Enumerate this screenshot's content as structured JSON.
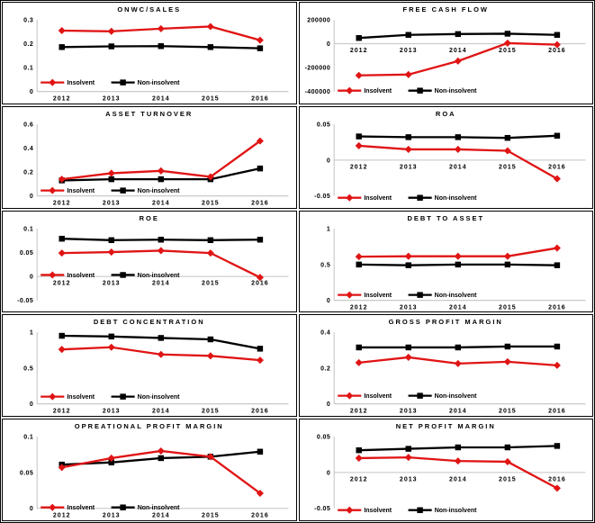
{
  "page": {
    "background": "#ffffff",
    "border_color": "#000000"
  },
  "axis": {
    "line_color": "#c3c3c3",
    "label_color": "#000000"
  },
  "years": [
    "2012",
    "2013",
    "2014",
    "2015",
    "2016"
  ],
  "legend": {
    "insolvent_label": "Insolvent",
    "non_insolvent_label": "Non-insolvent",
    "insolvent_color": "#e01414",
    "non_insolvent_color": "#000000"
  },
  "chart_data": [
    {
      "type": "line",
      "title": "ONWC/SALES",
      "ylim": [
        0,
        0.3
      ],
      "yticks": [
        0,
        0.1,
        0.2,
        0.3
      ],
      "legend_y": 74,
      "series": [
        {
          "name": "Insolvent",
          "color": "#e01414",
          "marker": "diamond",
          "values": [
            0.255,
            0.252,
            0.263,
            0.272,
            0.215
          ]
        },
        {
          "name": "Non-insolvent",
          "color": "#000000",
          "marker": "square",
          "values": [
            0.186,
            0.189,
            0.19,
            0.186,
            0.181
          ]
        }
      ]
    },
    {
      "type": "line",
      "title": "FREE CASH FLOW",
      "ylim": [
        -400000,
        200000
      ],
      "yticks": [
        -400000,
        -200000,
        0,
        200000
      ],
      "legend_y": 83,
      "series": [
        {
          "name": "Insolvent",
          "color": "#e01414",
          "marker": "diamond",
          "values": [
            -265000,
            -258000,
            -145000,
            5000,
            -8000
          ]
        },
        {
          "name": "Non-insolvent",
          "color": "#000000",
          "marker": "square",
          "values": [
            48000,
            74000,
            81000,
            84000,
            74000
          ]
        }
      ]
    },
    {
      "type": "line",
      "title": "ASSET TURNOVER",
      "ylim": [
        0,
        0.6
      ],
      "yticks": [
        0,
        0.2,
        0.4,
        0.6
      ],
      "legend_y": 78,
      "series": [
        {
          "name": "Insolvent",
          "color": "#e01414",
          "marker": "diamond",
          "values": [
            0.14,
            0.19,
            0.21,
            0.16,
            0.46
          ]
        },
        {
          "name": "Non-insolvent",
          "color": "#000000",
          "marker": "square",
          "values": [
            0.13,
            0.14,
            0.14,
            0.14,
            0.23
          ]
        }
      ]
    },
    {
      "type": "line",
      "title": "ROA",
      "ylim": [
        -0.05,
        0.05
      ],
      "yticks": [
        -0.05,
        0,
        0.05
      ],
      "legend_y": 86,
      "series": [
        {
          "name": "Insolvent",
          "color": "#e01414",
          "marker": "diamond",
          "values": [
            0.02,
            0.015,
            0.015,
            0.013,
            -0.026
          ]
        },
        {
          "name": "Non-insolvent",
          "color": "#000000",
          "marker": "square",
          "values": [
            0.033,
            0.032,
            0.032,
            0.031,
            0.034
          ]
        }
      ]
    },
    {
      "type": "line",
      "title": "ROE",
      "ylim": [
        -0.05,
        0.1
      ],
      "yticks": [
        -0.05,
        0,
        0.05,
        0.1
      ],
      "legend_y": 56,
      "series": [
        {
          "name": "Insolvent",
          "color": "#e01414",
          "marker": "diamond",
          "values": [
            0.049,
            0.051,
            0.054,
            0.049,
            -0.002
          ]
        },
        {
          "name": "Non-insolvent",
          "color": "#000000",
          "marker": "square",
          "values": [
            0.079,
            0.076,
            0.077,
            0.076,
            0.077
          ]
        }
      ]
    },
    {
      "type": "line",
      "title": "DEBT TO ASSET",
      "ylim": [
        0,
        1
      ],
      "yticks": [
        0,
        0.5,
        1
      ],
      "legend_y": 78,
      "series": [
        {
          "name": "Insolvent",
          "color": "#e01414",
          "marker": "diamond",
          "values": [
            0.61,
            0.615,
            0.615,
            0.615,
            0.73
          ]
        },
        {
          "name": "Non-insolvent",
          "color": "#000000",
          "marker": "square",
          "values": [
            0.5,
            0.49,
            0.5,
            0.5,
            0.49
          ]
        }
      ]
    },
    {
      "type": "line",
      "title": "DEBT CONCENTRATION",
      "ylim": [
        0,
        1
      ],
      "yticks": [
        0,
        0.5,
        1
      ],
      "legend_y": 76,
      "series": [
        {
          "name": "Insolvent",
          "color": "#e01414",
          "marker": "diamond",
          "values": [
            0.76,
            0.79,
            0.69,
            0.67,
            0.61
          ]
        },
        {
          "name": "Non-insolvent",
          "color": "#000000",
          "marker": "square",
          "values": [
            0.95,
            0.94,
            0.92,
            0.9,
            0.77
          ]
        }
      ]
    },
    {
      "type": "line",
      "title": "GROSS PROFIT MARGIN",
      "ylim": [
        0,
        0.4
      ],
      "yticks": [
        0,
        0.2,
        0.4
      ],
      "legend_y": 75,
      "series": [
        {
          "name": "Insolvent",
          "color": "#e01414",
          "marker": "diamond",
          "values": [
            0.23,
            0.26,
            0.225,
            0.235,
            0.215
          ]
        },
        {
          "name": "Non-insolvent",
          "color": "#000000",
          "marker": "square",
          "values": [
            0.315,
            0.315,
            0.315,
            0.32,
            0.32
          ]
        }
      ]
    },
    {
      "type": "line",
      "title": "OPREATIONAL PROFIT MARGIN",
      "ylim": [
        0,
        0.1
      ],
      "yticks": [
        0,
        0.05,
        0.1
      ],
      "legend_y": 83,
      "series": [
        {
          "name": "Insolvent",
          "color": "#e01414",
          "marker": "diamond",
          "values": [
            0.057,
            0.07,
            0.08,
            0.072,
            0.021
          ]
        },
        {
          "name": "Non-insolvent",
          "color": "#000000",
          "marker": "square",
          "values": [
            0.061,
            0.064,
            0.07,
            0.072,
            0.079
          ]
        }
      ]
    },
    {
      "type": "line",
      "title": "NET PROFIT MARGIN",
      "ylim": [
        -0.05,
        0.05
      ],
      "yticks": [
        -0.05,
        0,
        0.05
      ],
      "legend_y": 86,
      "series": [
        {
          "name": "Insolvent",
          "color": "#e01414",
          "marker": "diamond",
          "values": [
            0.02,
            0.021,
            0.016,
            0.015,
            -0.022
          ]
        },
        {
          "name": "Non-insolvent",
          "color": "#000000",
          "marker": "square",
          "values": [
            0.031,
            0.033,
            0.035,
            0.035,
            0.037
          ]
        }
      ]
    }
  ]
}
